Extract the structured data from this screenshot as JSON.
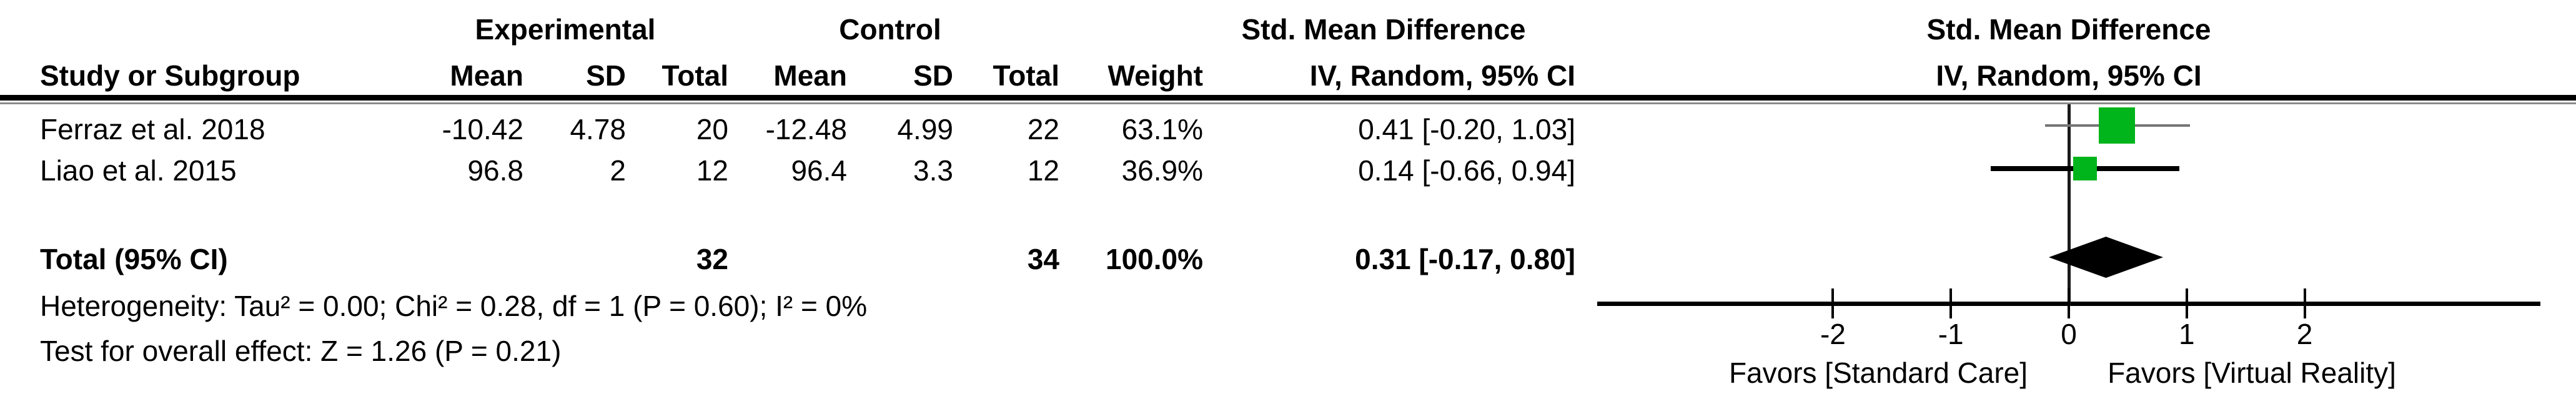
{
  "table": {
    "group_headers": {
      "experimental": "Experimental",
      "control": "Control",
      "smd_line1": "Std. Mean Difference",
      "smd_line2": "IV, Random, 95% CI"
    },
    "col_headers": {
      "study": "Study or Subgroup",
      "mean_exp": "Mean",
      "sd_exp": "SD",
      "total_exp": "Total",
      "mean_ctl": "Mean",
      "sd_ctl": "SD",
      "total_ctl": "Total",
      "weight": "Weight",
      "ci": "IV, Random, 95% CI"
    },
    "rows": [
      {
        "study": "Ferraz et al. 2018",
        "mean_exp": "-10.42",
        "sd_exp": "4.78",
        "total_exp": "20",
        "mean_ctl": "-12.48",
        "sd_ctl": "4.99",
        "total_ctl": "22",
        "weight": "63.1%",
        "smd_ci": "0.41 [-0.20, 1.03]"
      },
      {
        "study": "Liao et al. 2015",
        "mean_exp": "96.8",
        "sd_exp": "2",
        "total_exp": "12",
        "mean_ctl": "96.4",
        "sd_ctl": "3.3",
        "total_ctl": "12",
        "weight": "36.9%",
        "smd_ci": "0.14 [-0.66, 0.94]"
      }
    ],
    "total_row": {
      "label": "Total (95% CI)",
      "total_exp": "32",
      "total_ctl": "34",
      "weight": "100.0%",
      "smd_ci": "0.31 [-0.17, 0.80]"
    },
    "heterogeneity": "Heterogeneity: Tau² = 0.00; Chi² = 0.28, df = 1 (P = 0.60); I² = 0%",
    "overall_effect": "Test for overall effect: Z = 1.26 (P = 0.21)"
  },
  "plot": {
    "header_line1": "Std. Mean Difference",
    "header_line2": "IV, Random, 95% CI",
    "favors_left": "Favors [Standard Care]",
    "favors_right": "Favors [Virtual Reality]"
  },
  "chart_data": {
    "type": "scatter",
    "subtype": "forest-plot",
    "effect_measure": "Std. Mean Difference (IV, Random, 95% CI)",
    "studies": [
      {
        "name": "Ferraz et al. 2018",
        "smd": 0.41,
        "ci_low": -0.2,
        "ci_high": 1.03,
        "weight_pct": 63.1
      },
      {
        "name": "Liao et al. 2015",
        "smd": 0.14,
        "ci_low": -0.66,
        "ci_high": 0.94,
        "weight_pct": 36.9
      }
    ],
    "total": {
      "label": "Total (95% CI)",
      "smd": 0.31,
      "ci_low": -0.17,
      "ci_high": 0.8,
      "weight_pct": 100.0
    },
    "heterogeneity": {
      "tau2": 0.0,
      "chi2": 0.28,
      "df": 1,
      "p": 0.6,
      "i2_pct": 0
    },
    "overall_effect": {
      "z": 1.26,
      "p": 0.21
    },
    "xlim": [
      -4,
      4
    ],
    "xticks": [
      -2,
      -1,
      0,
      1,
      2
    ],
    "xlabel_left": "Favors [Standard Care]",
    "xlabel_right": "Favors [Virtual Reality]",
    "marker_color": "#00b41c",
    "diamond_color": "#000000",
    "grid": false,
    "legend": "none"
  },
  "colors": {
    "marker_green": "#00b41c",
    "text": "#000000",
    "ci_line_row1": "#757575",
    "ci_line_row2": "#000000"
  }
}
